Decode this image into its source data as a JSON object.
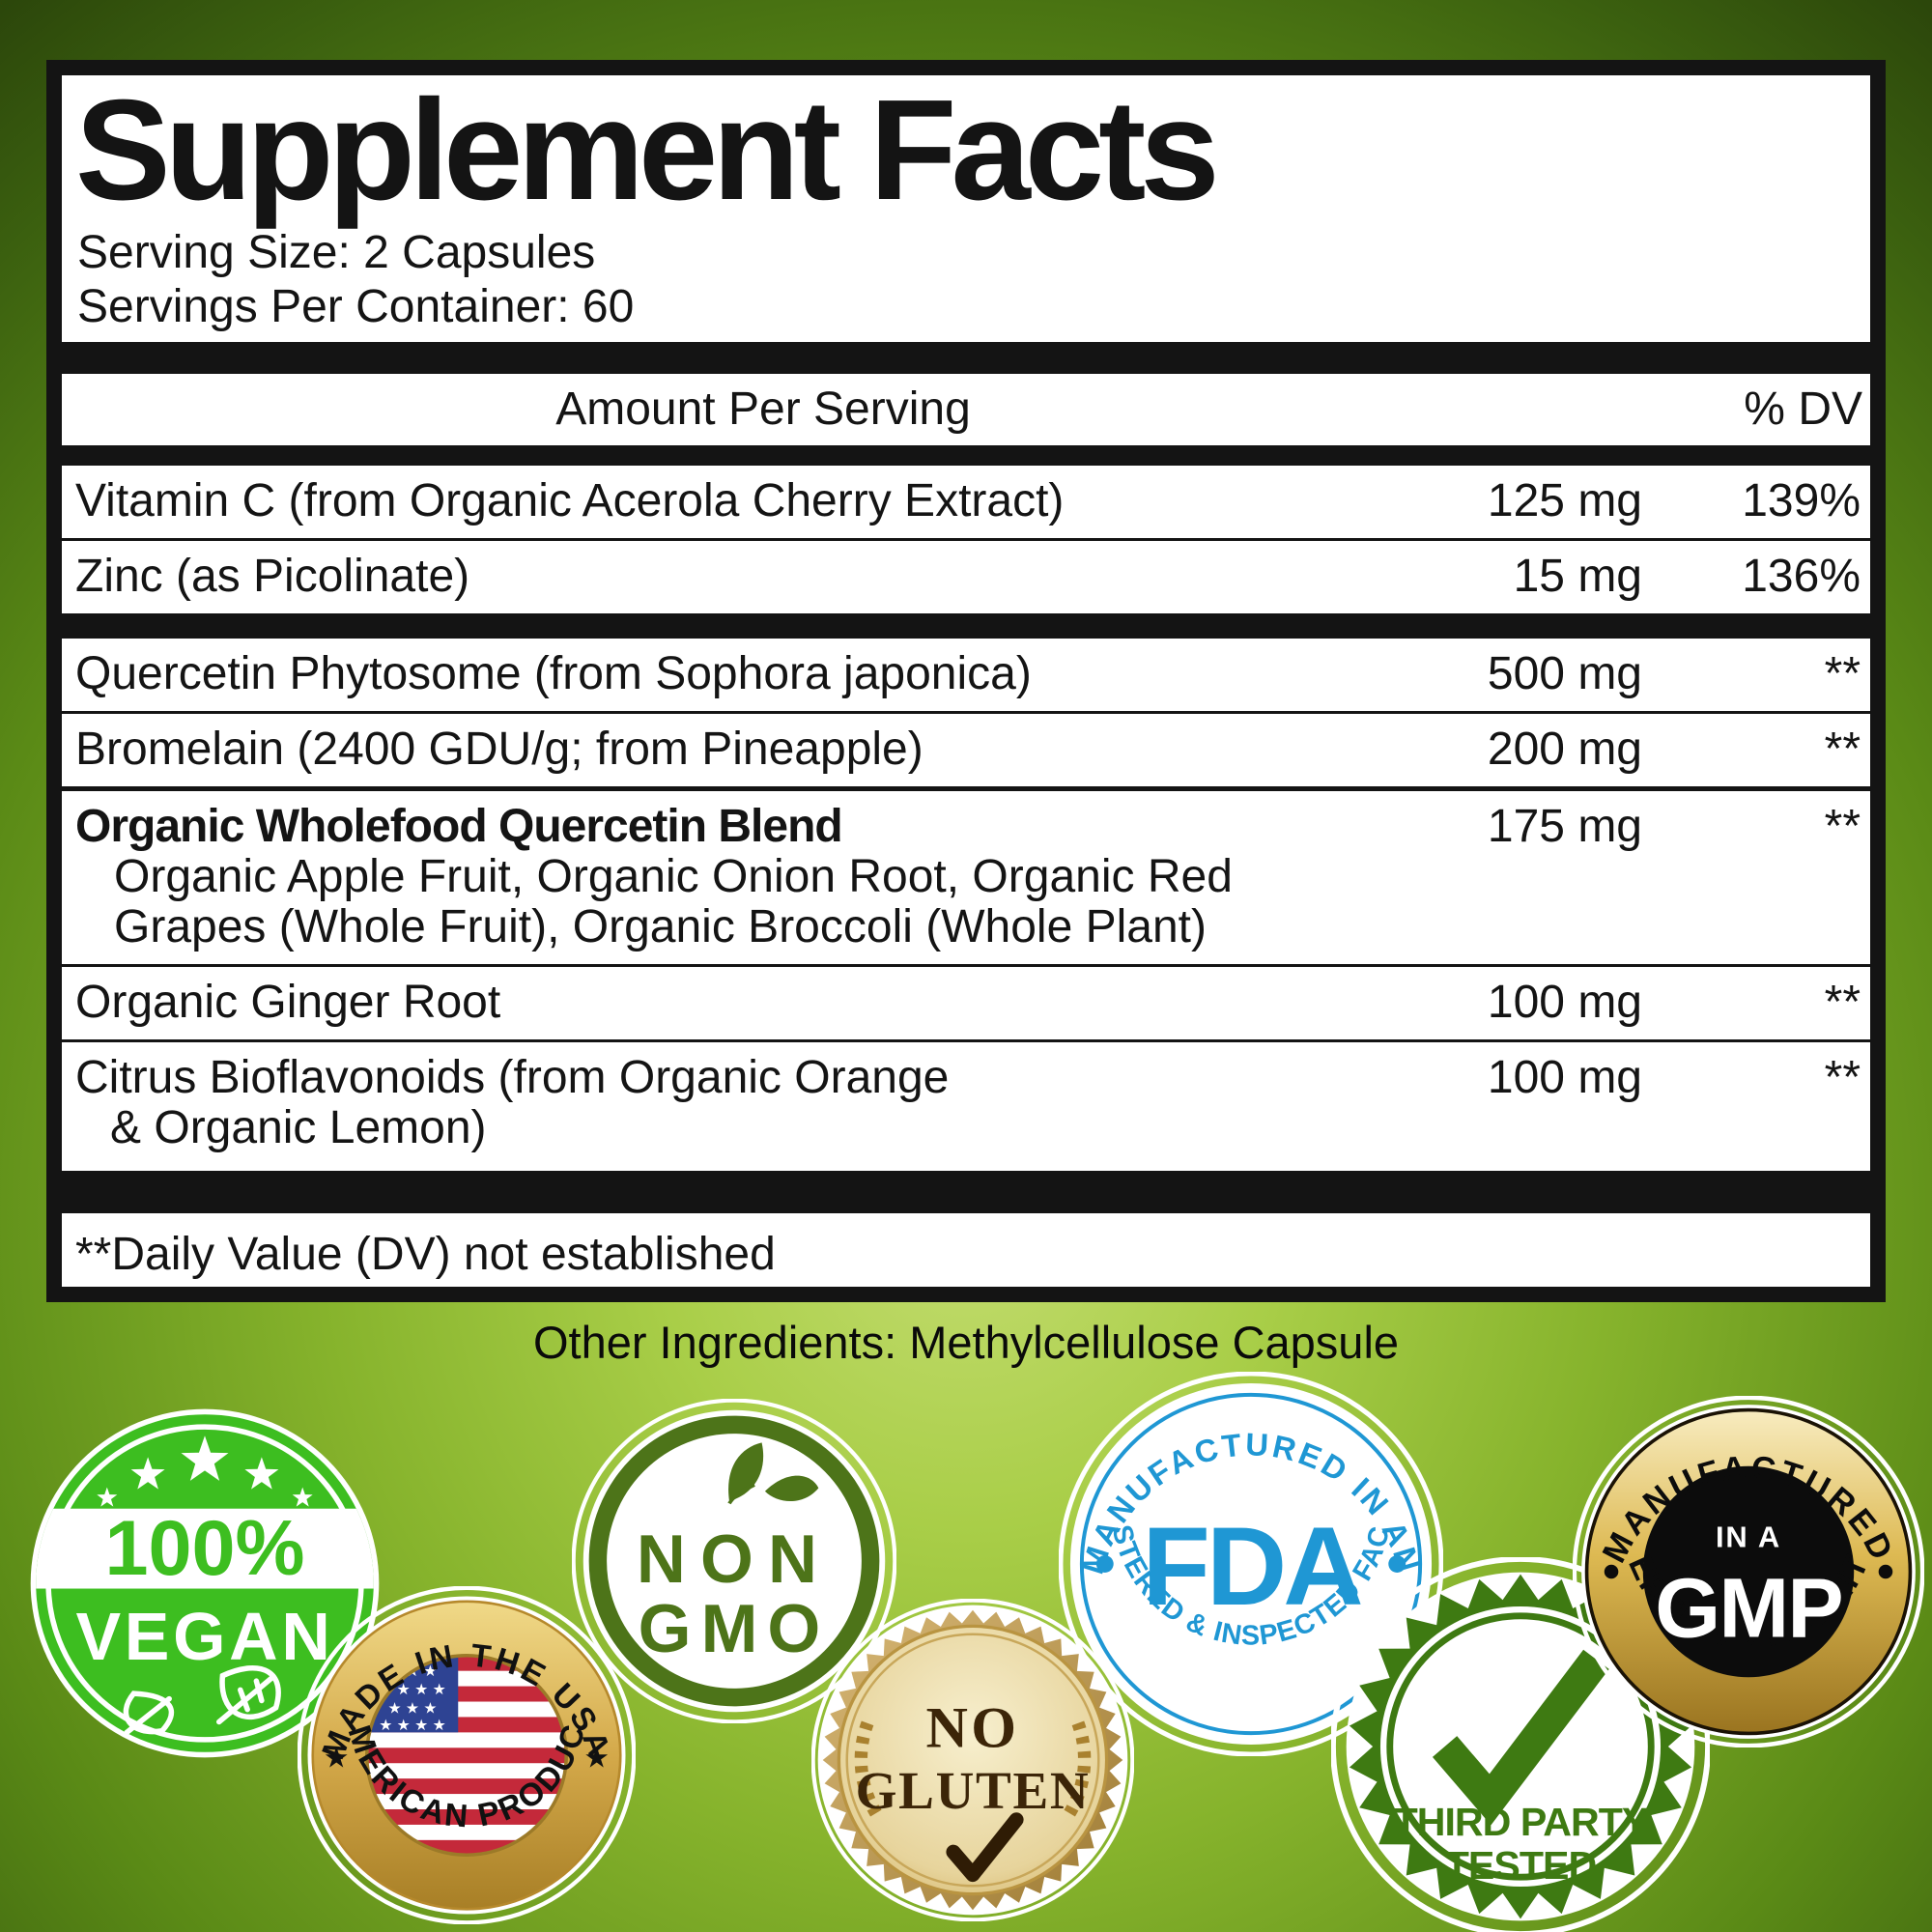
{
  "panel": {
    "title": "Supplement Facts",
    "serving_size": "Serving Size: 2 Capsules",
    "servings_per_container": "Servings Per Container: 60",
    "header": {
      "amount": "Amount Per Serving",
      "dv": "% DV"
    },
    "rows": [
      {
        "name": "Vitamin C (from Organic Acerola Cherry Extract)",
        "amount": "125 mg",
        "dv": "139%"
      },
      {
        "name": "Zinc (as Picolinate)",
        "amount": "15 mg",
        "dv": "136%"
      },
      {
        "name": "Quercetin Phytosome (from Sophora japonica)",
        "amount": "500 mg",
        "dv": "**"
      },
      {
        "name": "Bromelain (2400 GDU/g; from Pineapple)",
        "amount": "200 mg",
        "dv": "**"
      },
      {
        "name": "Organic Wholefood Quercetin Blend",
        "amount": "175 mg",
        "dv": "**",
        "sub_line1": "Organic Apple Fruit, Organic Onion Root, Organic Red",
        "sub_line2": "Grapes (Whole Fruit), Organic Broccoli (Whole Plant)"
      },
      {
        "name": "Organic Ginger Root",
        "amount": "100 mg",
        "dv": "**"
      },
      {
        "name": "Citrus Bioflavonoids (from Organic Orange",
        "name_line2": "& Organic Lemon)",
        "amount": "100 mg",
        "dv": "**"
      }
    ],
    "footnote": "**Daily Value (DV) not established"
  },
  "other_ingredients": "Other Ingredients: Methylcellulose Capsule",
  "badges": {
    "vegan": {
      "percent": "100%",
      "label": "VEGAN"
    },
    "non_gmo": {
      "line1": "NON",
      "line2": "GMO"
    },
    "fda": {
      "top": "MANUFACTURED IN AN",
      "center": "FDA",
      "bottom": "REGISTERED & INSPECTED FACILITY"
    },
    "gmp": {
      "top": "MANUFACTURED",
      "center_small": "IN A",
      "center_big": "GMP",
      "bottom": "CERTIFIED FACILITY"
    },
    "made_usa": {
      "top": "MADE IN THE USA",
      "bottom": "AMERICAN PRODUCT"
    },
    "no_gluten": {
      "line1": "NO",
      "line2": "GLUTEN"
    },
    "third_party": {
      "line1": "THIRD PARTY",
      "line2": "TESTED"
    }
  },
  "colors": {
    "label_ink": "#141414",
    "background_center_green": "#b8d45c",
    "background_edge_green": "#2c470b",
    "vegan_green": "#3dbe20",
    "non_gmo_green": "#4d7419",
    "fda_blue": "#1f97d4",
    "gold": "#d4a94a",
    "flag_red": "#c4293a",
    "flag_blue": "#2e4393",
    "gluten_brown": "#3c2508",
    "third_party_green": "#3e7a12"
  }
}
